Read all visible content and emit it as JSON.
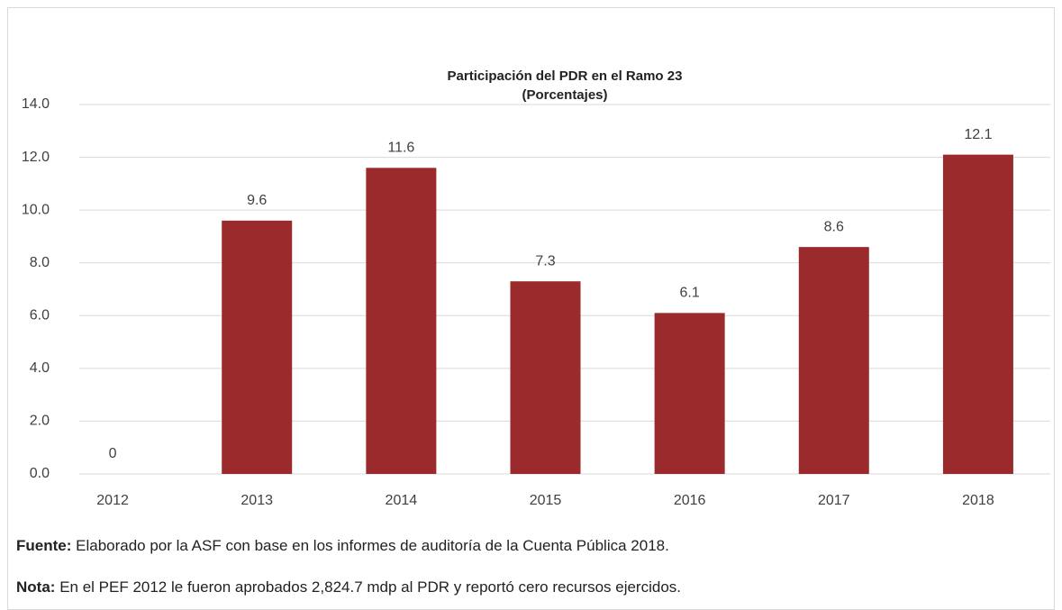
{
  "chart_data": {
    "type": "bar",
    "title": "Participación del PDR en el Ramo 23",
    "subtitle": "(Porcentajes)",
    "categories": [
      "2012",
      "2013",
      "2014",
      "2015",
      "2016",
      "2017",
      "2018"
    ],
    "values": [
      0,
      9.6,
      11.6,
      7.3,
      6.1,
      8.6,
      12.1
    ],
    "color": "#9b2a2c",
    "ylim": [
      0,
      14
    ],
    "yticks": [
      {
        "value": 0,
        "label": "0.0"
      },
      {
        "value": 2,
        "label": "2.0"
      },
      {
        "value": 4,
        "label": "4.0"
      },
      {
        "value": 6,
        "label": "6.0"
      },
      {
        "value": 8,
        "label": "8.0"
      },
      {
        "value": 10,
        "label": "10.0"
      },
      {
        "value": 12,
        "label": "12.0"
      },
      {
        "value": 14,
        "label": "14.0"
      }
    ],
    "grid": true
  },
  "notes": [
    {
      "label": "Fuente:",
      "text": "Elaborado por la ASF con base en los informes de auditoría de la Cuenta Pública 2018."
    },
    {
      "label": "Nota:",
      "text": "En el PEF 2012 le fueron aprobados 2,824.7 mdp al PDR y reportó cero recursos ejercidos."
    }
  ]
}
